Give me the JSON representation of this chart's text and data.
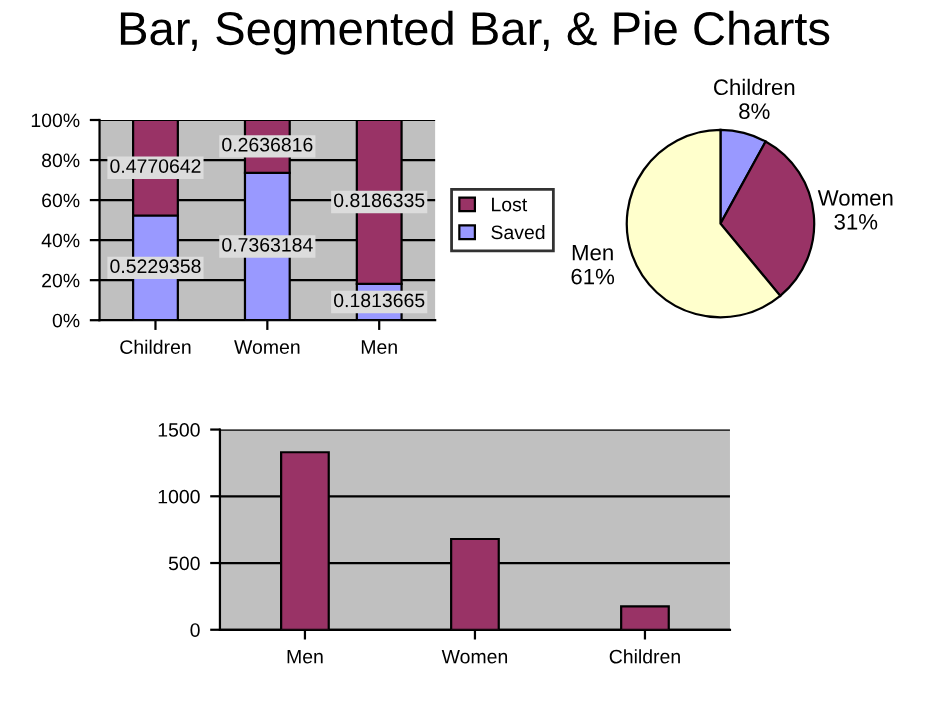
{
  "chart_data": [
    {
      "type": "bar",
      "title": "Bar, Segmented Bar, & Pie Charts",
      "stacked": true,
      "categories": [
        "Children",
        "Women",
        "Men"
      ],
      "series": [
        {
          "name": "Saved",
          "color": "#9999ff",
          "values": [
            0.5229358,
            0.7363184,
            0.1813665
          ]
        },
        {
          "name": "Lost",
          "color": "#993366",
          "values": [
            0.4770642,
            0.2636816,
            0.8186335
          ]
        }
      ],
      "data_labels": true,
      "ylim": [
        0,
        1
      ],
      "yticks": [
        {
          "value": 0,
          "label": "0%"
        },
        {
          "value": 0.2,
          "label": "20%"
        },
        {
          "value": 0.4,
          "label": "40%"
        },
        {
          "value": 0.6,
          "label": "60%"
        },
        {
          "value": 0.8,
          "label": "80%"
        },
        {
          "value": 1,
          "label": "100%"
        }
      ],
      "grid": "y",
      "legend": "right"
    },
    {
      "type": "pie",
      "categories": [
        "Children",
        "Women",
        "Men"
      ],
      "values": [
        8,
        31,
        61
      ],
      "value_labels": [
        "8%",
        "31%",
        "61%"
      ],
      "colors": [
        "#9999ff",
        "#993366",
        "#ffffcc"
      ]
    },
    {
      "type": "bar",
      "categories": [
        "Men",
        "Women",
        "Children"
      ],
      "values": [
        1330,
        680,
        175
      ],
      "color": "#993366",
      "ylim": [
        0,
        1500
      ],
      "yticks": [
        0,
        500,
        1000,
        1500
      ],
      "grid": "y"
    }
  ]
}
